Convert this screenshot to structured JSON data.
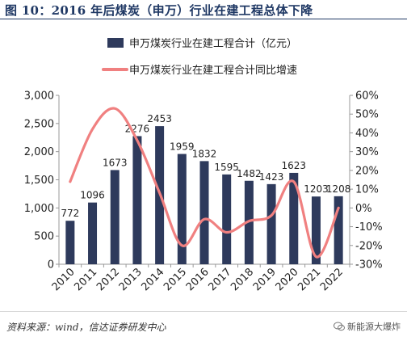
{
  "figure_title": "图 10：2016 年后煤炭（申万）行业在建工程总体下降",
  "footer": {
    "source": "资料来源：wind，信达证券研发中心",
    "watermark": "新能源大爆炸"
  },
  "colors": {
    "bar": "#2e3a5c",
    "line": "#f08080",
    "title": "#1f3864",
    "axis": "#999999"
  },
  "chart_data": {
    "type": "bar",
    "categories": [
      "2010",
      "2011",
      "2012",
      "2013",
      "2014",
      "2015",
      "2016",
      "2017",
      "2018",
      "2019",
      "2020",
      "2021",
      "2022"
    ],
    "series": [
      {
        "name": "申万煤炭行业在建工程合计（亿元）",
        "kind": "bar",
        "axis": "left",
        "values": [
          772,
          1096,
          1673,
          2276,
          2453,
          1959,
          1832,
          1595,
          1482,
          1423,
          1623,
          1203,
          1208
        ],
        "labels": [
          "772",
          "1096",
          "1673",
          "2276",
          "2453",
          "1959",
          "1832",
          "1595",
          "1482",
          "1423",
          "1623",
          "1203",
          "1208"
        ]
      },
      {
        "name": "申万煤炭行业在建工程合计同比增速",
        "kind": "line",
        "axis": "right",
        "values": [
          14,
          42,
          53,
          36,
          8,
          -20,
          -6,
          -13,
          -7,
          -4,
          14,
          -26,
          0
        ]
      }
    ],
    "y_left": {
      "range": [
        0,
        3000
      ],
      "ticks": [
        0,
        500,
        1000,
        1500,
        2000,
        2500,
        3000
      ],
      "tick_labels": [
        "0",
        "500",
        "1,000",
        "1,500",
        "2,000",
        "2,500",
        "3,000"
      ]
    },
    "y_right": {
      "range": [
        -30,
        60
      ],
      "ticks": [
        -30,
        -20,
        -10,
        0,
        10,
        20,
        30,
        40,
        50,
        60
      ],
      "tick_labels": [
        "-30%",
        "-20%",
        "-10%",
        "0%",
        "10%",
        "20%",
        "30%",
        "40%",
        "50%",
        "60%"
      ]
    },
    "legend_position": "top",
    "grid": false,
    "x_label_rotation": "45-degrees"
  }
}
